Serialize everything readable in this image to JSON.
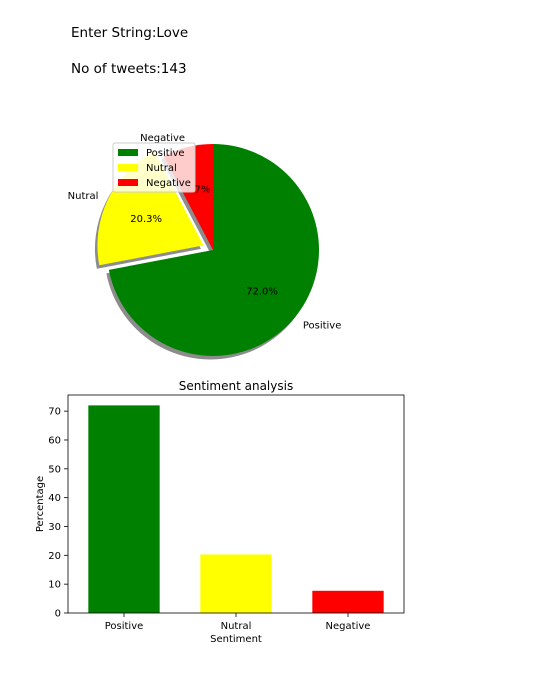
{
  "header": {
    "input_label": "Enter String:",
    "input_value": "Love",
    "count_label": "No of tweets:",
    "count_value": "143"
  },
  "chart_data": [
    {
      "type": "pie",
      "title": "",
      "labels": [
        "Positive",
        "Nutral",
        "Negative"
      ],
      "values": [
        72.0,
        20.3,
        7.7
      ],
      "value_labels": [
        "72.0%",
        "20.3%",
        "7.7%"
      ],
      "colors": [
        "#008000",
        "#ffff00",
        "#ff0000"
      ],
      "explode": [
        0,
        0.1,
        0
      ],
      "shadow": true,
      "legend": {
        "placement": "top-left",
        "entries": [
          "Positive",
          "Nutral",
          "Negative"
        ]
      }
    },
    {
      "type": "bar",
      "title": "Sentiment analysis",
      "categories": [
        "Positive",
        "Nutral",
        "Negative"
      ],
      "values": [
        72.0,
        20.3,
        7.7
      ],
      "colors": [
        "#008000",
        "#ffff00",
        "#ff0000"
      ],
      "xlabel": "Sentiment",
      "ylabel": "Percentage",
      "ylim": [
        0,
        75.6
      ],
      "yticks": [
        0,
        10,
        20,
        30,
        40,
        50,
        60,
        70
      ],
      "grid": false
    }
  ]
}
